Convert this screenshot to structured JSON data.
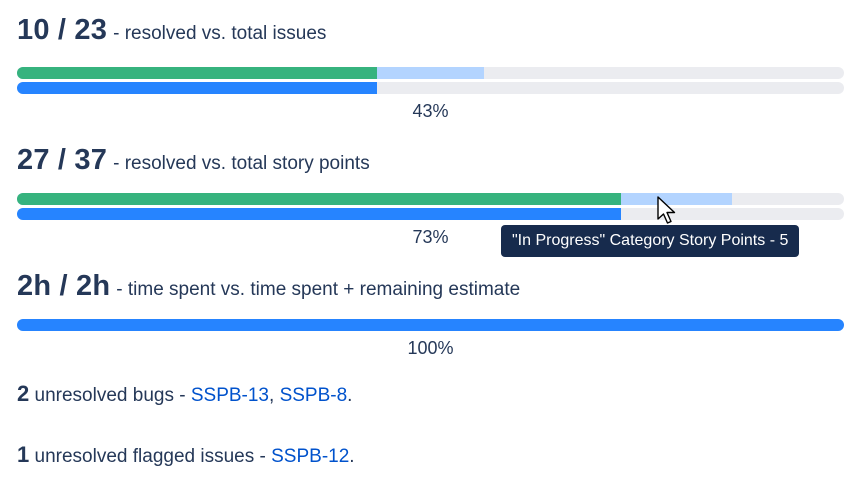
{
  "issues": {
    "count": "10 / 23",
    "description": "- resolved vs. total issues",
    "percent_label": "43%",
    "resolved_fraction": 0.435,
    "in_progress_fraction": 0.565,
    "estimate_fraction": 0.435
  },
  "story_points": {
    "count": "27 / 37",
    "description": "- resolved vs. total story points",
    "percent_label": "73%",
    "resolved_fraction": 0.73,
    "in_progress_fraction": 0.865,
    "estimate_fraction": 0.73
  },
  "time": {
    "count": "2h / 2h",
    "description": "- time spent vs. time spent + remaining estimate",
    "percent_label": "100%",
    "spent_fraction": 1.0
  },
  "bugs": {
    "count": "2",
    "text": " unresolved bugs - ",
    "links": [
      "SSPB-13",
      "SSPB-8"
    ],
    "separator": ", ",
    "end": "."
  },
  "flagged": {
    "count": "1",
    "text": " unresolved flagged issues - ",
    "links": [
      "SSPB-12"
    ],
    "end": "."
  },
  "tooltip": {
    "text": "\"In Progress\" Category Story Points - 5"
  },
  "colors": {
    "done": "#36B37E",
    "in_progress": "#B3D4FF",
    "spent": "#2684FF",
    "track": "#EBECF0",
    "link": "#0052CC",
    "tooltip_bg": "#172B4D"
  },
  "icons": {
    "cursor": "mouse-pointer-icon"
  }
}
